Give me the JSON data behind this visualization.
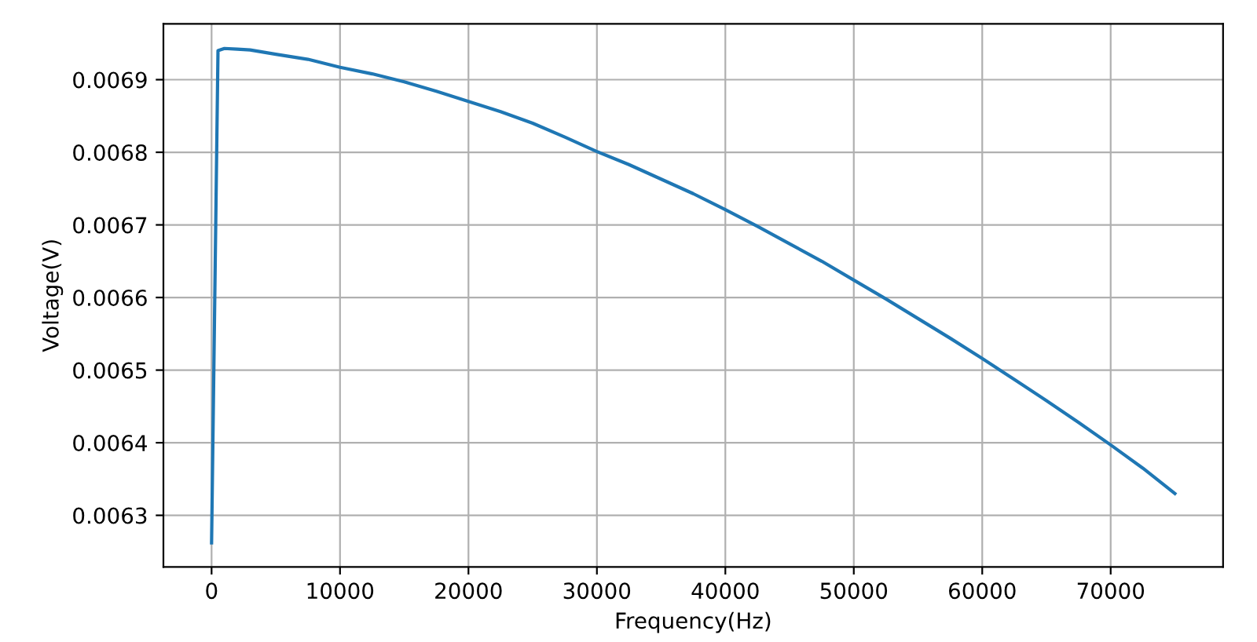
{
  "chart_data": {
    "type": "line",
    "xlabel": "Frequency(Hz)",
    "ylabel": "Voltage(V)",
    "grid": true,
    "series": [
      {
        "color": "#1f77b4",
        "x": [
          0,
          500,
          1000,
          2000,
          3000,
          5000,
          7500,
          10000,
          12500,
          15000,
          17500,
          20000,
          22500,
          25000,
          27500,
          30000,
          32500,
          35000,
          37500,
          40000,
          42500,
          45000,
          47500,
          50000,
          52500,
          55000,
          57500,
          60000,
          62500,
          65000,
          67500,
          70000,
          72500,
          75000
        ],
        "values": [
          0.006262,
          0.00694,
          0.006943,
          0.006942,
          0.006941,
          0.006935,
          0.006928,
          0.006917,
          0.006908,
          0.006897,
          0.006884,
          0.00687,
          0.006856,
          0.00684,
          0.006821,
          0.006801,
          0.006783,
          0.006763,
          0.006743,
          0.006721,
          0.006698,
          0.006674,
          0.00665,
          0.006624,
          0.006598,
          0.006571,
          0.006544,
          0.006516,
          0.006487,
          0.006458,
          0.006428,
          0.006397,
          0.006365,
          0.00633
        ]
      }
    ],
    "xlim": [
      -3750,
      78750
    ],
    "ylim": [
      0.006229,
      0.006977
    ],
    "xticks": [
      0,
      10000,
      20000,
      30000,
      40000,
      50000,
      60000,
      70000
    ],
    "yticks": [
      0.0063,
      0.0064,
      0.0065,
      0.0066,
      0.0067,
      0.0068,
      0.0069
    ]
  }
}
